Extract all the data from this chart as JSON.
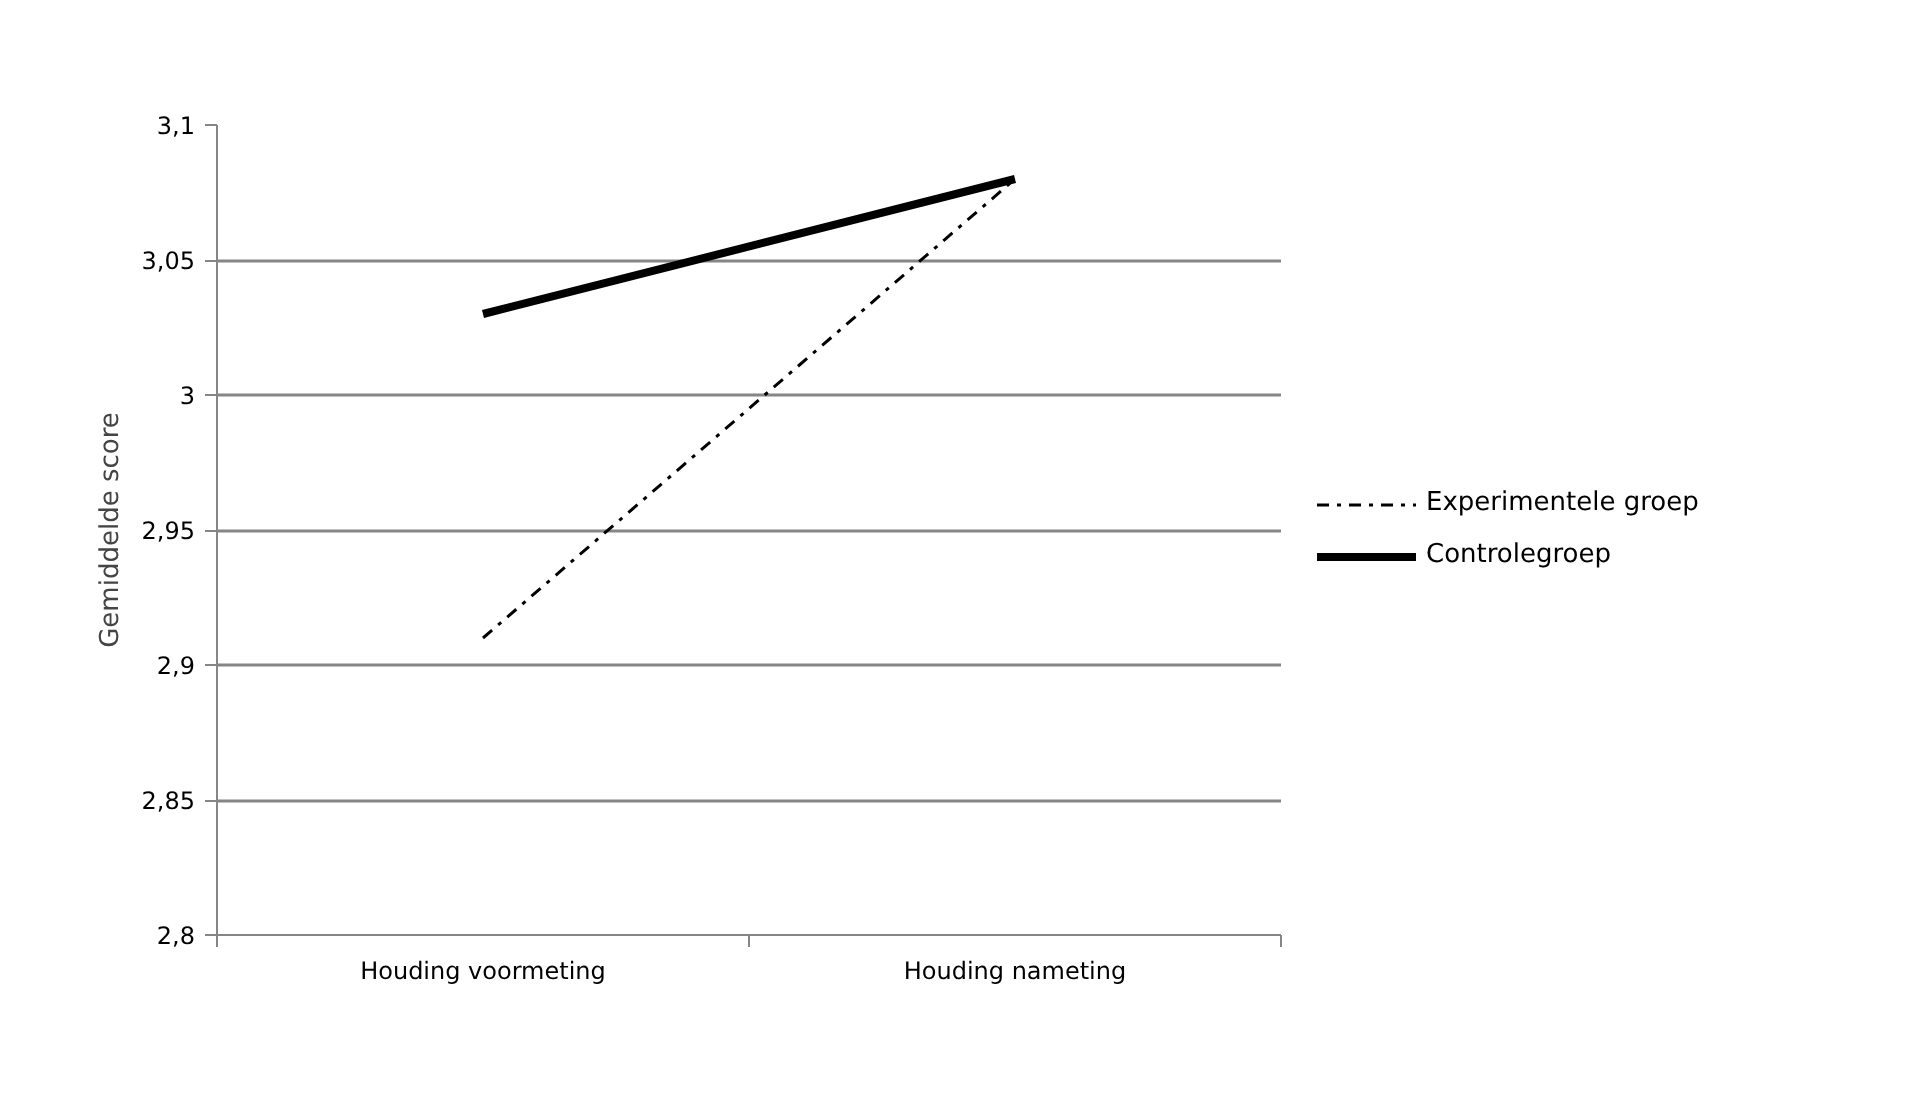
{
  "chart_data": {
    "type": "line",
    "ylabel": "Gemiddelde score",
    "categories": [
      "Houding voormeting",
      "Houding nameting"
    ],
    "series": [
      {
        "name": "Experimentele groep",
        "color": "#000000",
        "values": [
          2.91,
          3.08
        ],
        "line_style": "dashed"
      },
      {
        "name": "Controlegroep",
        "color": "#000000",
        "values": [
          3.03,
          3.08
        ],
        "line_style": "solid"
      }
    ],
    "ylim": [
      2.8,
      3.1
    ],
    "yticks": [
      {
        "value": 2.8,
        "label": "2,8"
      },
      {
        "value": 2.85,
        "label": "2,85"
      },
      {
        "value": 2.9,
        "label": "2,9"
      },
      {
        "value": 2.95,
        "label": "2,95"
      },
      {
        "value": 3.0,
        "label": "3"
      },
      {
        "value": 3.05,
        "label": "3,05"
      },
      {
        "value": 3.1,
        "label": "3,1"
      }
    ],
    "grid": "y",
    "legend": "right",
    "marker": "none"
  }
}
